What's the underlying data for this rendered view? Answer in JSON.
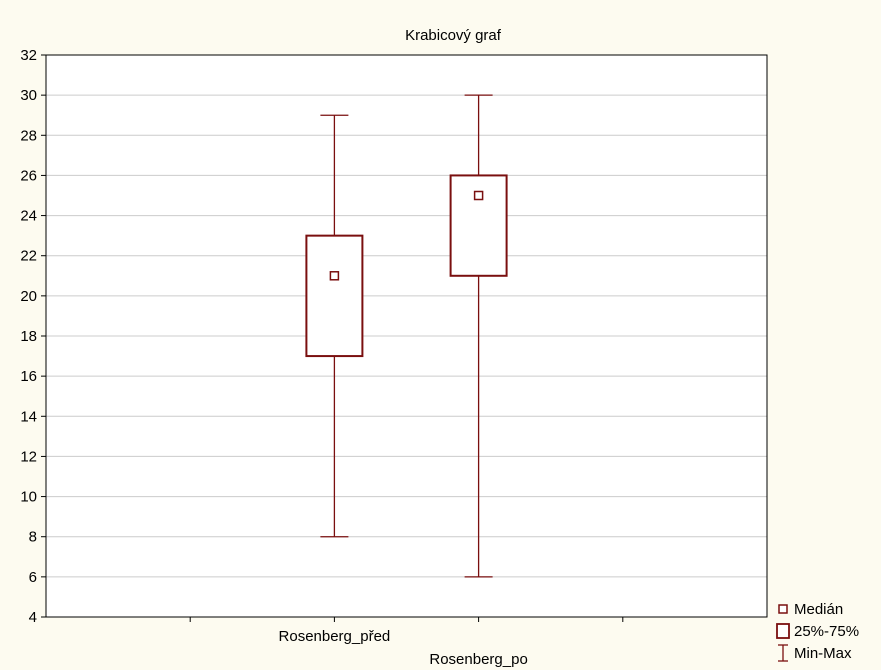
{
  "chart_data": {
    "type": "box",
    "title": "Krabicový graf",
    "xlabel": "",
    "ylabel": "",
    "ylim": [
      4,
      32
    ],
    "yticks": [
      4,
      6,
      8,
      10,
      12,
      14,
      16,
      18,
      20,
      22,
      24,
      26,
      28,
      30,
      32
    ],
    "grid": true,
    "legend_position": "bottom-right, outside plot",
    "categories": [
      "Rosenberg_před",
      "Rosenberg_po"
    ],
    "boxes": [
      {
        "label": "Rosenberg_před",
        "min": 8,
        "q1": 17,
        "median": 21,
        "q3": 23,
        "max": 29
      },
      {
        "label": "Rosenberg_po",
        "min": 6,
        "q1": 21,
        "median": 25,
        "q3": 26,
        "max": 30
      }
    ],
    "legend": [
      {
        "key": "median",
        "label": "Medián"
      },
      {
        "key": "box",
        "label": "25%-75%"
      },
      {
        "key": "whisker",
        "label": "Min-Max"
      }
    ],
    "colors": {
      "series": "#7a0f0f",
      "plot_background": "#ffffff",
      "page_background": "#fdfbf0",
      "grid": "#cccccc"
    }
  }
}
